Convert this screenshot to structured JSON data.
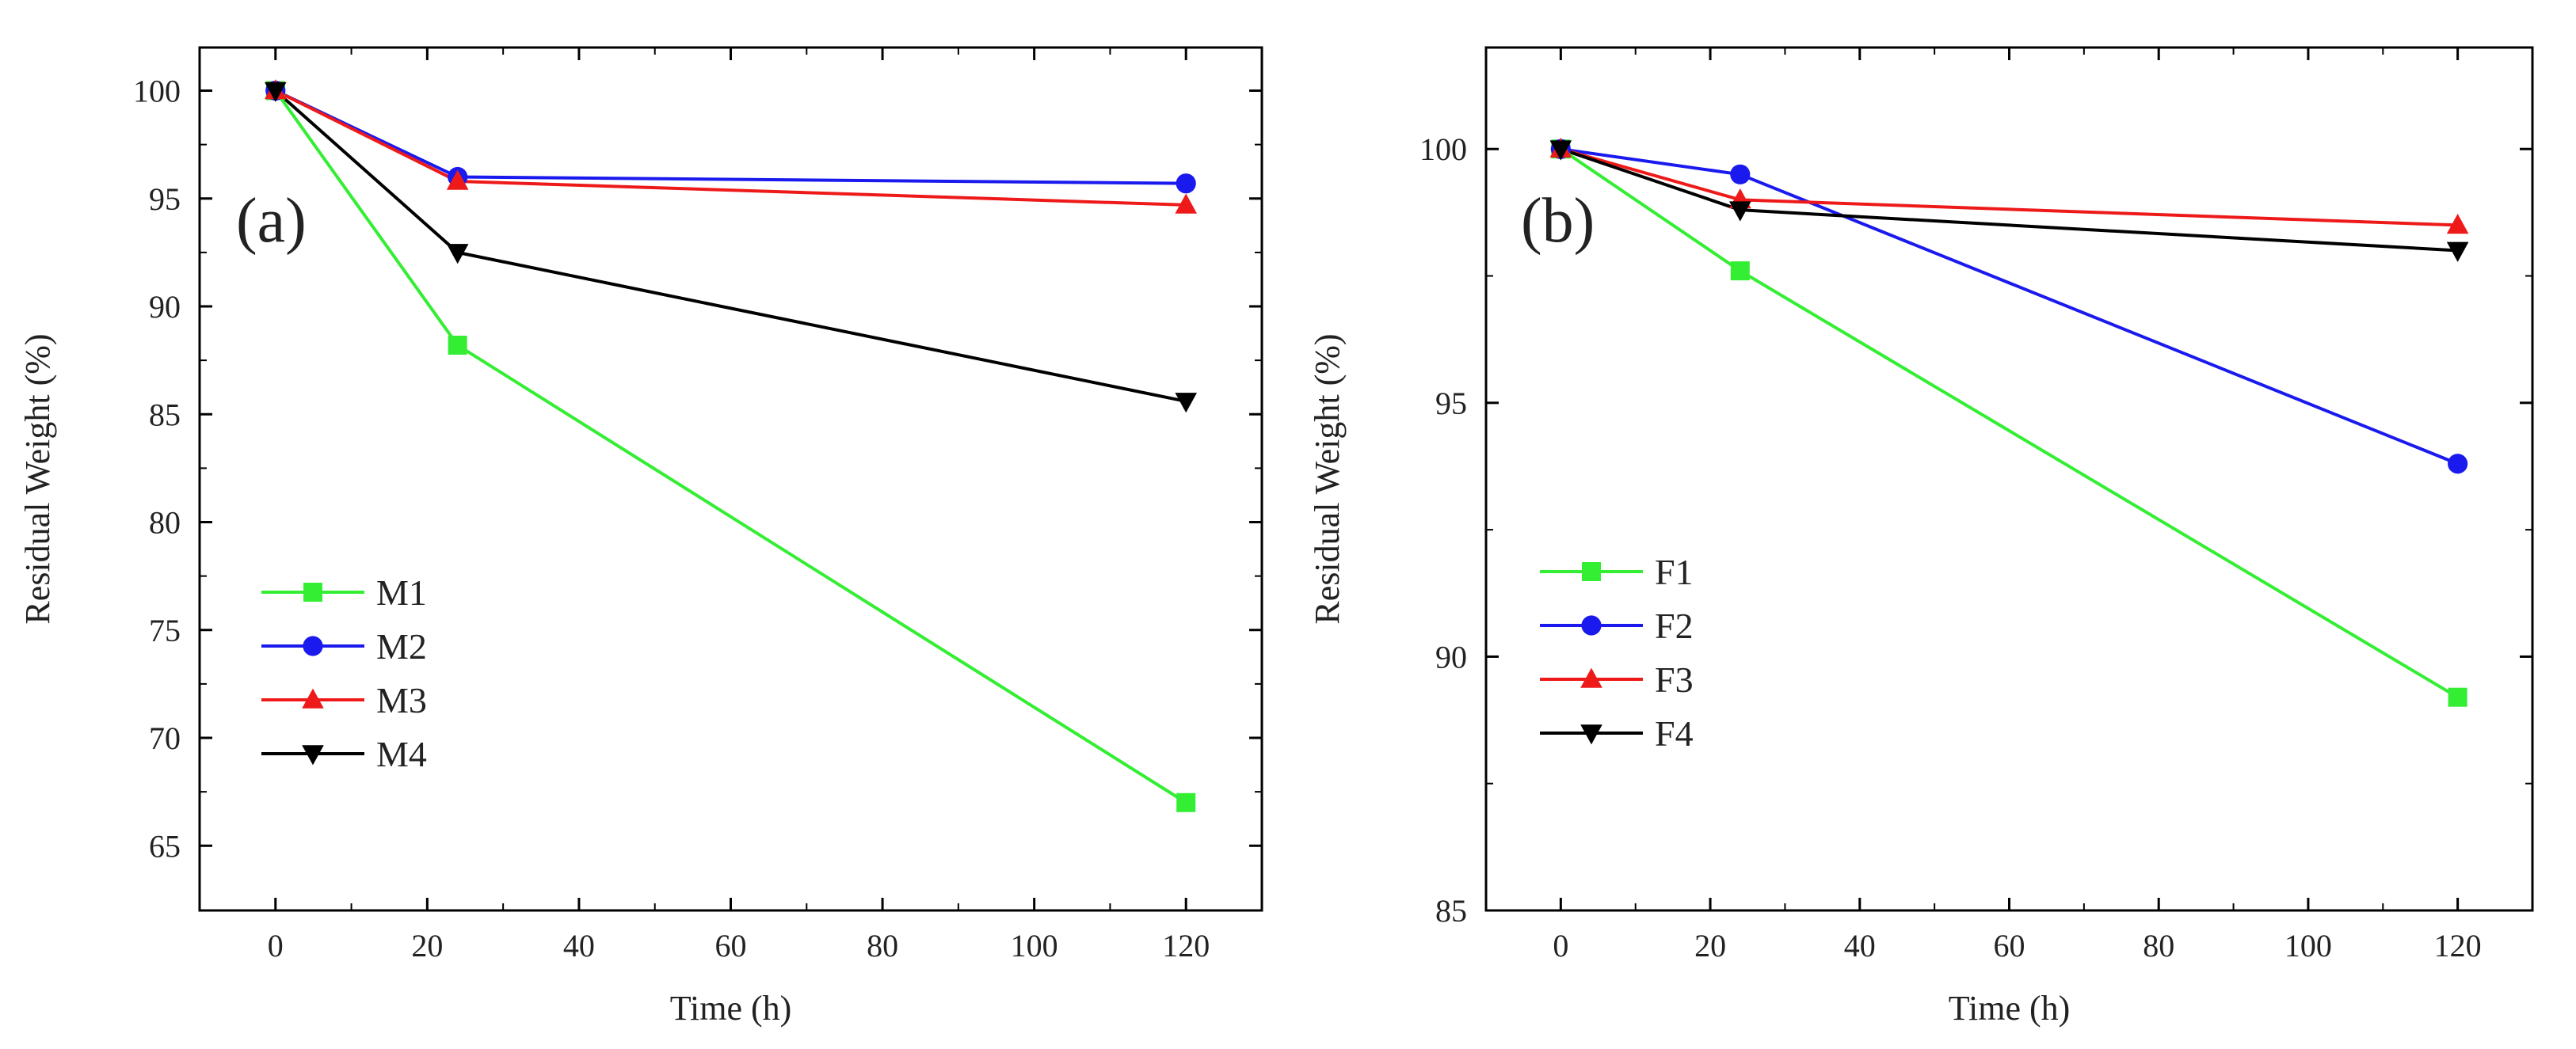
{
  "chart_data": [
    {
      "type": "line",
      "panel_label": "(a)",
      "xlabel": "Time (h)",
      "ylabel": "Residual Weight (%)",
      "xlim": [
        -10,
        130
      ],
      "ylim": [
        62,
        102
      ],
      "xticks": [
        0,
        20,
        40,
        60,
        80,
        100,
        120
      ],
      "yticks": [
        65,
        70,
        75,
        80,
        85,
        90,
        95,
        100
      ],
      "x": [
        0,
        24,
        120
      ],
      "legend_position": "lower-left",
      "series": [
        {
          "name": "M1",
          "color": "#33ee33",
          "marker": "square",
          "values": [
            100,
            88.2,
            67.0
          ]
        },
        {
          "name": "M2",
          "color": "#1a1aee",
          "marker": "circle",
          "values": [
            100,
            96.0,
            95.7
          ]
        },
        {
          "name": "M3",
          "color": "#ee1a1a",
          "marker": "triangle-up",
          "values": [
            100,
            95.8,
            94.7
          ]
        },
        {
          "name": "M4",
          "color": "#000000",
          "marker": "triangle-down",
          "values": [
            100,
            92.5,
            85.6
          ]
        }
      ]
    },
    {
      "type": "line",
      "panel_label": "(b)",
      "xlabel": "Time (h)",
      "ylabel": "Residual Weight (%)",
      "xlim": [
        -10,
        130
      ],
      "ylim": [
        85,
        102
      ],
      "xticks": [
        0,
        20,
        40,
        60,
        80,
        100,
        120
      ],
      "yticks": [
        85,
        90,
        95,
        100
      ],
      "x": [
        0,
        24,
        120
      ],
      "legend_position": "lower-left",
      "series": [
        {
          "name": "F1",
          "color": "#33ee33",
          "marker": "square",
          "values": [
            100,
            97.6,
            89.2
          ]
        },
        {
          "name": "F2",
          "color": "#1a1aee",
          "marker": "circle",
          "values": [
            100,
            99.5,
            93.8
          ]
        },
        {
          "name": "F3",
          "color": "#ee1a1a",
          "marker": "triangle-up",
          "values": [
            100,
            99.0,
            98.5
          ]
        },
        {
          "name": "F4",
          "color": "#000000",
          "marker": "triangle-down",
          "values": [
            100,
            98.8,
            98.0
          ]
        }
      ]
    }
  ]
}
